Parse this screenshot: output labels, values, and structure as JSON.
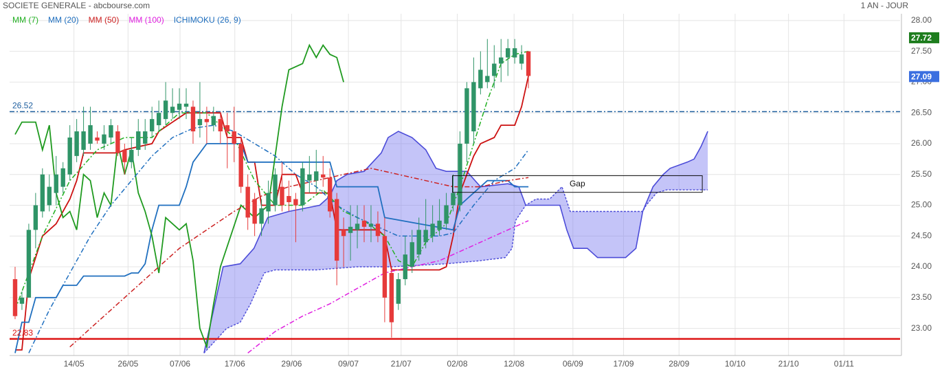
{
  "chart_data": {
    "type": "candlestick",
    "title": "SOCIETE GENERALE - abcbourse.com",
    "subtitle": "1 AN - JOUR",
    "xlim": [
      -0.8,
      129.3
    ],
    "xticks": [
      {
        "value": 8.6,
        "label": "14/05"
      },
      {
        "value": 16.5,
        "label": "26/05"
      },
      {
        "value": 24.1,
        "label": "07/06"
      },
      {
        "value": 32.1,
        "label": "17/06"
      },
      {
        "value": 40.4,
        "label": "29/06"
      },
      {
        "value": 48.7,
        "label": "09/07"
      },
      {
        "value": 56.4,
        "label": "21/07"
      },
      {
        "value": 64.6,
        "label": "02/08"
      },
      {
        "value": 72.9,
        "label": "12/08"
      },
      {
        "value": 81.5,
        "label": "06/09"
      },
      {
        "value": 88.9,
        "label": "17/09"
      },
      {
        "value": 97.0,
        "label": "28/09"
      },
      {
        "value": 105.2,
        "label": "10/10"
      },
      {
        "value": 113.0,
        "label": "21/10"
      },
      {
        "value": 121.1,
        "label": "01/11"
      }
    ],
    "ylim": [
      22.56,
      28.11
    ],
    "yticks": [
      {
        "value": 23,
        "label": "23.00"
      },
      {
        "value": 23.5,
        "label": "23.50"
      },
      {
        "value": 24,
        "label": "24.00"
      },
      {
        "value": 24.5,
        "label": "24.50"
      },
      {
        "value": 25,
        "label": "25.00"
      },
      {
        "value": 25.5,
        "label": "25.50"
      },
      {
        "value": 26,
        "label": "26.00"
      },
      {
        "value": 26.5,
        "label": "26.50"
      },
      {
        "value": 27,
        "label": "27.00"
      },
      {
        "value": 27.5,
        "label": "27.50"
      },
      {
        "value": 28,
        "label": "28.00"
      }
    ],
    "grid": true,
    "up_color": "#2f9467",
    "down_color": "#e63a3a",
    "candles": {
      "open": [
        23.8,
        23.4,
        23.5,
        24.6,
        24.9,
        25.0,
        25.2,
        25.3,
        25.5,
        25.8,
        25.9,
        26.0,
        26.1,
        26.0,
        26.1,
        26.2,
        25.9,
        25.7,
        25.9,
        26.0,
        26.2,
        26.3,
        26.4,
        26.5,
        26.55,
        26.6,
        26.6,
        26.3,
        26.4,
        26.3,
        26.4,
        26.3,
        26.2,
        26.0,
        25.3,
        25.1,
        24.7,
        24.9,
        25.0,
        25.3,
        25.15,
        25.1,
        25.0,
        25.4,
        25.4,
        25.5,
        25.45,
        25.1,
        24.6,
        24.55,
        24.6,
        24.75,
        24.65,
        24.7,
        24.5,
        23.9,
        23.4,
        23.8,
        24.0,
        24.2,
        24.4,
        24.5,
        24.6,
        24.7,
        25.0,
        25.0,
        26.0,
        26.2,
        26.9,
        27.0,
        27.1,
        27.3,
        27.4,
        27.4,
        27.3,
        27.5
      ],
      "high": [
        24.0,
        23.6,
        24.7,
        25.2,
        25.6,
        25.5,
        25.8,
        25.7,
        26.3,
        26.4,
        26.6,
        26.6,
        26.2,
        26.3,
        26.4,
        26.3,
        26.0,
        26.1,
        26.4,
        26.4,
        26.6,
        26.7,
        27.0,
        26.9,
        26.9,
        26.9,
        26.7,
        27.0,
        26.6,
        26.6,
        26.5,
        26.5,
        26.6,
        26.1,
        25.5,
        25.2,
        25.1,
        25.4,
        25.6,
        25.7,
        25.4,
        25.2,
        25.7,
        25.8,
        25.9,
        25.8,
        25.6,
        25.2,
        24.8,
        25.0,
        25.0,
        25.0,
        25.0,
        24.9,
        24.8,
        24.0,
        23.9,
        24.5,
        24.6,
        24.8,
        25.1,
        25.0,
        25.1,
        25.2,
        25.5,
        26.2,
        27.0,
        27.4,
        27.5,
        27.7,
        27.6,
        27.7,
        27.7,
        27.7,
        27.6,
        27.5
      ],
      "low": [
        23.15,
        23.3,
        23.5,
        24.3,
        24.8,
        24.9,
        25.0,
        25.2,
        25.4,
        25.7,
        25.8,
        25.9,
        26.0,
        25.9,
        26.0,
        25.8,
        25.5,
        25.6,
        25.8,
        25.9,
        26.1,
        26.2,
        26.3,
        26.4,
        26.4,
        26.4,
        26.0,
        26.1,
        26.0,
        26.2,
        26.0,
        25.6,
        25.7,
        25.2,
        24.6,
        24.5,
        24.5,
        24.7,
        24.9,
        24.9,
        24.9,
        24.4,
        24.9,
        25.2,
        25.2,
        25.3,
        24.8,
        23.7,
        24.0,
        24.1,
        24.3,
        24.4,
        24.4,
        24.4,
        23.1,
        22.85,
        23.3,
        23.7,
        23.9,
        24.1,
        24.3,
        24.4,
        24.5,
        24.6,
        24.9,
        24.9,
        25.7,
        26.0,
        26.8,
        26.9,
        26.9,
        27.0,
        27.1,
        27.3,
        27.2,
        26.9
      ],
      "close": [
        23.2,
        23.5,
        24.6,
        25.0,
        25.5,
        25.3,
        25.5,
        25.6,
        26.1,
        26.2,
        26.2,
        26.3,
        26.05,
        26.15,
        26.3,
        25.85,
        25.7,
        25.9,
        26.2,
        26.2,
        26.4,
        26.5,
        26.7,
        26.6,
        26.65,
        26.65,
        26.2,
        26.4,
        26.35,
        26.45,
        26.2,
        26.2,
        26.0,
        25.3,
        24.8,
        24.7,
        24.95,
        25.2,
        25.5,
        25.0,
        25.05,
        25.0,
        25.6,
        25.5,
        25.55,
        25.45,
        24.9,
        24.1,
        24.5,
        24.65,
        24.7,
        24.65,
        24.7,
        24.5,
        23.5,
        23.1,
        23.8,
        24.2,
        24.4,
        24.6,
        24.6,
        24.7,
        24.75,
        25.0,
        25.2,
        26.0,
        26.9,
        27.0,
        27.2,
        27.1,
        27.3,
        27.4,
        27.55,
        27.55,
        27.45,
        27.1
      ]
    },
    "series": [
      {
        "name": "MM (7)",
        "color": "#22b022",
        "style": "dashdot",
        "x": [
          0,
          4,
          8,
          12,
          16,
          20,
          24,
          28,
          32,
          35,
          38,
          42,
          45,
          48,
          51,
          54,
          56,
          58,
          60,
          63,
          65,
          67,
          69,
          71,
          73,
          75
        ],
        "values": [
          23.3,
          24.5,
          25.4,
          25.9,
          26.1,
          26.1,
          26.5,
          26.5,
          26.1,
          25.4,
          25.0,
          25.0,
          25.25,
          24.9,
          24.75,
          24.5,
          24.1,
          24.0,
          24.4,
          24.7,
          25.3,
          26.0,
          26.7,
          27.3,
          27.45,
          27.5
        ]
      },
      {
        "name": "MM (20)",
        "color": "#1f6fbf",
        "style": "dashdot",
        "x": [
          2,
          5,
          8,
          11,
          14,
          17,
          20,
          23,
          26,
          29,
          32,
          35,
          38,
          41,
          44,
          47,
          50,
          53,
          56,
          59,
          62,
          64,
          67,
          70,
          73,
          75
        ],
        "values": [
          22.6,
          23.3,
          23.9,
          24.5,
          25.0,
          25.4,
          25.8,
          26.1,
          26.25,
          26.3,
          26.2,
          26.0,
          25.8,
          25.5,
          25.3,
          25.0,
          24.8,
          24.65,
          24.5,
          24.5,
          24.5,
          24.55,
          25.0,
          25.4,
          25.6,
          25.9
        ]
      },
      {
        "name": "MM (50)",
        "color": "#cc2020",
        "style": "dashdot",
        "x": [
          8,
          12,
          16,
          20,
          24,
          28,
          32,
          36,
          40,
          44,
          48,
          52,
          56,
          60,
          64,
          68,
          72,
          75
        ],
        "values": [
          22.7,
          23.1,
          23.5,
          23.9,
          24.3,
          24.6,
          24.9,
          25.15,
          25.3,
          25.4,
          25.5,
          25.6,
          25.5,
          25.4,
          25.3,
          25.3,
          25.4,
          25.45
        ]
      },
      {
        "name": "MM (100)",
        "color": "#e020e0",
        "style": "dashdot",
        "x": [
          34,
          38,
          42,
          46,
          50,
          54,
          58,
          62,
          66,
          70,
          75
        ],
        "values": [
          22.6,
          22.95,
          23.2,
          23.4,
          23.65,
          23.9,
          24.0,
          24.1,
          24.3,
          24.5,
          24.75
        ]
      }
    ],
    "ichimoku": {
      "name": "ICHIMOKU (26, 9)",
      "color": "#1f6fbf",
      "lines": [
        {
          "color": "#cc1010",
          "style": "solid",
          "x": [
            0,
            1,
            2,
            4,
            6,
            8,
            9,
            10,
            15,
            16,
            20,
            21,
            25,
            30,
            31,
            33,
            34,
            35,
            36,
            38,
            39,
            41,
            42,
            46,
            47,
            53,
            54,
            55,
            62,
            63,
            64,
            65,
            66,
            67,
            68,
            70,
            71,
            73,
            74,
            75
          ],
          "values": [
            22.65,
            22.65,
            23.8,
            24.5,
            24.7,
            25.1,
            25.4,
            25.85,
            25.85,
            25.9,
            26.0,
            26.2,
            26.5,
            26.5,
            26.1,
            26.1,
            25.7,
            25.7,
            25.0,
            25.0,
            25.5,
            25.5,
            25.2,
            25.2,
            24.6,
            24.6,
            24.5,
            23.95,
            23.95,
            24.0,
            24.5,
            25.2,
            25.5,
            25.8,
            26.0,
            26.1,
            26.3,
            26.3,
            26.6,
            27.1
          ]
        },
        {
          "color": "#1f6fbf",
          "style": "solid",
          "x": [
            0,
            1,
            2,
            3,
            6,
            7,
            9,
            10,
            16,
            17,
            18,
            19,
            20,
            21,
            24,
            25,
            26,
            28,
            33,
            34,
            46,
            47,
            53,
            54,
            59,
            64,
            65,
            66,
            69,
            72,
            73,
            75
          ],
          "values": [
            22.6,
            23.1,
            23.1,
            23.5,
            23.5,
            23.7,
            23.7,
            23.85,
            23.85,
            23.9,
            23.9,
            24.05,
            24.6,
            25.0,
            25.0,
            25.3,
            25.7,
            26.0,
            26.0,
            25.7,
            25.7,
            25.3,
            25.3,
            24.8,
            24.7,
            24.6,
            25.0,
            25.1,
            25.4,
            25.4,
            25.3,
            25.3
          ]
        },
        {
          "color": "#1f9a1f",
          "style": "solid",
          "x": [
            0,
            1,
            3,
            4,
            5,
            6,
            7,
            8,
            9,
            10,
            11,
            12,
            13,
            14,
            15,
            16,
            17,
            18,
            19,
            20,
            21,
            22,
            23,
            24,
            25,
            26,
            27,
            28,
            29,
            30,
            33,
            35,
            37,
            39,
            40,
            42,
            43,
            44,
            45,
            46,
            47,
            48
          ],
          "values": [
            26.15,
            26.35,
            26.35,
            25.9,
            26.3,
            25.2,
            24.8,
            24.9,
            24.6,
            25.5,
            25.4,
            24.8,
            25.2,
            25.0,
            26.0,
            25.5,
            25.9,
            25.2,
            24.9,
            24.5,
            23.9,
            24.8,
            24.7,
            24.6,
            24.7,
            24.1,
            23.0,
            22.7,
            23.4,
            24.0,
            25.0,
            24.8,
            25.0,
            26.6,
            27.2,
            27.3,
            27.6,
            27.4,
            27.6,
            27.45,
            27.4,
            27.0
          ]
        }
      ],
      "cloud": {
        "fill": "#7c7cf0",
        "edge": "#4b4bd8",
        "span_a": {
          "x": [
            27.6,
            29.4,
            30.4,
            32.9,
            34.9,
            36.9,
            40,
            44.5,
            46,
            47,
            48.5,
            51,
            53.5,
            54.5,
            56,
            58,
            60,
            61.5,
            63,
            66,
            68,
            72,
            73.6,
            74.6,
            79.6,
            80.6,
            81.6,
            83.6,
            85.1,
            89.2,
            90.7,
            91.7,
            93.2,
            94.7,
            95.7,
            98.2,
            99.2,
            100.2,
            101.2
          ],
          "values": [
            22.6,
            23.5,
            24.0,
            24.05,
            24.3,
            24.8,
            24.9,
            25.0,
            25.15,
            25.4,
            25.5,
            25.55,
            25.85,
            26.1,
            26.2,
            26.1,
            25.9,
            25.6,
            25.55,
            25.55,
            25.3,
            25.35,
            25.3,
            25.0,
            25.0,
            24.6,
            24.3,
            24.3,
            24.15,
            24.15,
            24.3,
            24.9,
            25.3,
            25.5,
            25.6,
            25.7,
            25.75,
            25.95,
            26.2
          ]
        },
        "span_b": {
          "x": [
            27.6,
            30.9,
            32.9,
            34.4,
            36.4,
            38,
            44,
            50,
            55,
            63,
            68,
            71.6,
            72.6,
            73.1,
            74.6,
            76.1,
            78.1,
            79.9,
            81.1,
            91.7,
            92.2,
            93.7,
            95.2,
            101.2
          ],
          "values": [
            22.6,
            23.0,
            23.1,
            23.4,
            23.9,
            23.95,
            23.95,
            24.0,
            24.0,
            24.05,
            24.1,
            24.15,
            24.3,
            24.75,
            25.0,
            25.1,
            25.1,
            25.3,
            24.9,
            24.9,
            25.0,
            25.2,
            25.25,
            25.25
          ]
        }
      }
    },
    "levels": [
      {
        "value": 26.52,
        "color": "#1f5f9f",
        "style": "dashdot"
      },
      {
        "value": 22.83,
        "color": "#dd1111",
        "style": "solid"
      }
    ],
    "price_tags": [
      {
        "value": 27.72,
        "color": "#1e7d1e"
      },
      {
        "value": 27.09,
        "color": "#3b6fe0"
      }
    ],
    "annotations": [
      {
        "text": "Gap",
        "x": [
          63.9,
          100.4
        ],
        "y": [
          25.21,
          25.48
        ]
      }
    ]
  }
}
